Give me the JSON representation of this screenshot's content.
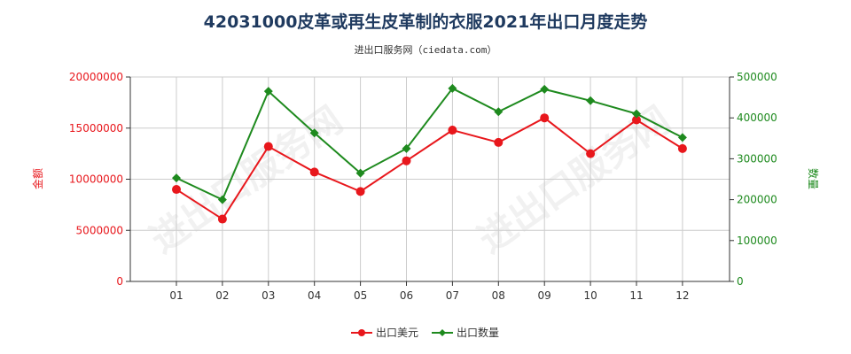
{
  "title": "42031000皮革或再生皮革制的衣服2021年出口月度走势",
  "subtitle": "进出口服务网（ciedata.com）",
  "watermark": "进出口服务网",
  "colors": {
    "amount": "#e8171c",
    "quantity": "#1e8a1e",
    "grid": "#cccccc",
    "axis": "#333333"
  },
  "chart_data": {
    "type": "line",
    "title": "42031000皮革或再生皮革制的衣服2021年出口月度走势",
    "categories": [
      "01",
      "02",
      "03",
      "04",
      "05",
      "06",
      "07",
      "08",
      "09",
      "10",
      "11",
      "12"
    ],
    "y_left": {
      "label": "金额",
      "range": [
        0,
        20000000
      ],
      "ticks": [
        "0",
        "5000000",
        "10000000",
        "15000000",
        "20000000"
      ]
    },
    "y_right": {
      "label": "数量",
      "range": [
        0,
        500000
      ],
      "ticks": [
        "0",
        "100000",
        "200000",
        "300000",
        "400000",
        "500000"
      ]
    },
    "grid": true,
    "legend": "bottom",
    "series": [
      {
        "name": "出口美元",
        "axis": "left",
        "color": "#e8171c",
        "marker": "circle",
        "values": [
          9000000,
          6100000,
          13200000,
          10700000,
          8800000,
          11800000,
          14800000,
          13600000,
          16000000,
          12500000,
          15800000,
          13000000
        ]
      },
      {
        "name": "出口数量",
        "axis": "right",
        "color": "#1e8a1e",
        "marker": "diamond",
        "values": [
          253000,
          200000,
          465000,
          363000,
          265000,
          325000,
          472000,
          415000,
          470000,
          442000,
          410000,
          352000
        ]
      }
    ]
  }
}
